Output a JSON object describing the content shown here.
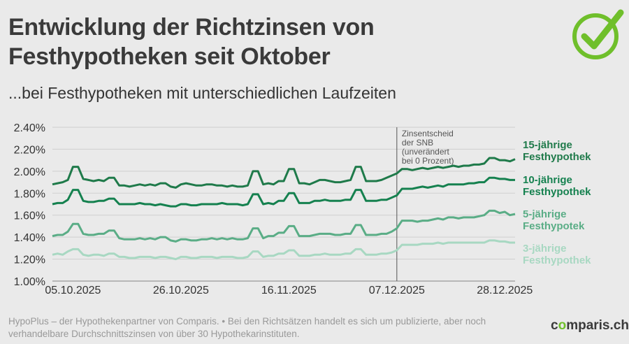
{
  "title": "Entwicklung der Richtzinsen von Festhypotheken seit Oktober",
  "subtitle": "...bei Festhypotheken mit unterschiedlichen Laufzeiten",
  "footer": "HypoPlus – der Hypothekenpartner von Comparis. • Bei den Richtsätzen handelt es sich um publizierte, aber noch verhandelbare Durchschnittszinsen von über 30 Hypothekarinstituten.",
  "brand": {
    "pre": "c",
    "o": "o",
    "post": "mparis.ch"
  },
  "colors": {
    "accent": "#6fbf2b",
    "s15": "#1f7a4a",
    "s10": "#15814f",
    "s5": "#5aad86",
    "s3": "#a8d8c2"
  },
  "chart_data": {
    "type": "line",
    "ylim": [
      1.0,
      2.4
    ],
    "ymin_label": 1.0,
    "yticks": [
      "2.40%",
      "2.20%",
      "2.00%",
      "1.80%",
      "1.60%",
      "1.40%",
      "1.20%",
      "1.00%"
    ],
    "ytick_values": [
      2.4,
      2.2,
      2.0,
      1.8,
      1.6,
      1.4,
      1.2,
      1.0
    ],
    "xlim": [
      0,
      90
    ],
    "xticks": [
      "05.10.2025",
      "26.10.2025",
      "16.11.2025",
      "07.12.2025",
      "28.12.2025"
    ],
    "xtick_values": [
      4,
      25,
      46,
      67,
      88
    ],
    "annotation": {
      "text": [
        "Zinsentscheid",
        "der SNB",
        "(unverändert",
        "bei 0 Prozent)"
      ],
      "x": 67
    },
    "series": [
      {
        "name": "15-jährige Festhypothek",
        "label": [
          "15-jährige",
          "Festhypothek"
        ],
        "color": "#1f7a4a",
        "x": [
          0,
          1,
          2,
          3,
          4,
          5,
          6,
          7,
          8,
          9,
          10,
          11,
          12,
          13,
          14,
          15,
          16,
          17,
          18,
          19,
          20,
          21,
          22,
          23,
          24,
          25,
          26,
          27,
          28,
          29,
          30,
          31,
          32,
          33,
          34,
          35,
          36,
          37,
          38,
          39,
          40,
          41,
          42,
          43,
          44,
          45,
          46,
          47,
          48,
          49,
          50,
          51,
          52,
          53,
          54,
          55,
          56,
          57,
          58,
          59,
          60,
          61,
          62,
          63,
          64,
          65,
          66,
          67,
          68,
          69,
          70,
          71,
          72,
          73,
          74,
          75,
          76,
          77,
          78,
          79,
          80,
          81,
          82,
          83,
          84,
          85,
          86,
          87,
          88,
          89,
          90
        ],
        "y": [
          1.88,
          1.89,
          1.9,
          1.92,
          2.04,
          2.04,
          1.93,
          1.92,
          1.91,
          1.92,
          1.91,
          1.94,
          1.94,
          1.87,
          1.87,
          1.86,
          1.87,
          1.88,
          1.87,
          1.88,
          1.87,
          1.89,
          1.89,
          1.86,
          1.85,
          1.88,
          1.89,
          1.88,
          1.87,
          1.87,
          1.88,
          1.88,
          1.87,
          1.87,
          1.86,
          1.87,
          1.86,
          1.86,
          1.87,
          2.0,
          2.0,
          1.88,
          1.89,
          1.88,
          1.91,
          1.91,
          2.02,
          2.02,
          1.89,
          1.89,
          1.88,
          1.9,
          1.92,
          1.92,
          1.91,
          1.9,
          1.9,
          1.91,
          1.92,
          2.04,
          2.04,
          1.91,
          1.91,
          1.91,
          1.92,
          1.94,
          1.96,
          1.98,
          2.02,
          2.02,
          2.01,
          2.02,
          2.03,
          2.02,
          2.03,
          2.04,
          2.03,
          2.04,
          2.05,
          2.04,
          2.05,
          2.05,
          2.06,
          2.06,
          2.07,
          2.12,
          2.12,
          2.1,
          2.1,
          2.09,
          2.11
        ]
      },
      {
        "name": "10-jährige Festhypothek",
        "label": [
          "10-jährige",
          "Festhypothek"
        ],
        "color": "#15814f",
        "x": [
          0,
          1,
          2,
          3,
          4,
          5,
          6,
          7,
          8,
          9,
          10,
          11,
          12,
          13,
          14,
          15,
          16,
          17,
          18,
          19,
          20,
          21,
          22,
          23,
          24,
          25,
          26,
          27,
          28,
          29,
          30,
          31,
          32,
          33,
          34,
          35,
          36,
          37,
          38,
          39,
          40,
          41,
          42,
          43,
          44,
          45,
          46,
          47,
          48,
          49,
          50,
          51,
          52,
          53,
          54,
          55,
          56,
          57,
          58,
          59,
          60,
          61,
          62,
          63,
          64,
          65,
          66,
          67,
          68,
          69,
          70,
          71,
          72,
          73,
          74,
          75,
          76,
          77,
          78,
          79,
          80,
          81,
          82,
          83,
          84,
          85,
          86,
          87,
          88,
          89,
          90
        ],
        "y": [
          1.7,
          1.71,
          1.71,
          1.74,
          1.83,
          1.83,
          1.73,
          1.72,
          1.72,
          1.73,
          1.73,
          1.75,
          1.75,
          1.7,
          1.7,
          1.7,
          1.7,
          1.71,
          1.7,
          1.7,
          1.69,
          1.7,
          1.69,
          1.68,
          1.68,
          1.7,
          1.7,
          1.69,
          1.69,
          1.7,
          1.7,
          1.7,
          1.7,
          1.71,
          1.7,
          1.7,
          1.7,
          1.69,
          1.7,
          1.79,
          1.79,
          1.7,
          1.71,
          1.7,
          1.73,
          1.73,
          1.8,
          1.8,
          1.71,
          1.71,
          1.71,
          1.73,
          1.73,
          1.74,
          1.73,
          1.73,
          1.73,
          1.74,
          1.74,
          1.83,
          1.83,
          1.73,
          1.73,
          1.73,
          1.74,
          1.74,
          1.76,
          1.78,
          1.84,
          1.84,
          1.84,
          1.85,
          1.86,
          1.85,
          1.86,
          1.87,
          1.86,
          1.88,
          1.88,
          1.88,
          1.88,
          1.89,
          1.89,
          1.9,
          1.9,
          1.94,
          1.94,
          1.93,
          1.93,
          1.92,
          1.92
        ]
      },
      {
        "name": "5-jährige Festhypotek",
        "label": [
          "5-jährige",
          "Festhypotek"
        ],
        "color": "#5aad86",
        "x": [
          0,
          1,
          2,
          3,
          4,
          5,
          6,
          7,
          8,
          9,
          10,
          11,
          12,
          13,
          14,
          15,
          16,
          17,
          18,
          19,
          20,
          21,
          22,
          23,
          24,
          25,
          26,
          27,
          28,
          29,
          30,
          31,
          32,
          33,
          34,
          35,
          36,
          37,
          38,
          39,
          40,
          41,
          42,
          43,
          44,
          45,
          46,
          47,
          48,
          49,
          50,
          51,
          52,
          53,
          54,
          55,
          56,
          57,
          58,
          59,
          60,
          61,
          62,
          63,
          64,
          65,
          66,
          67,
          68,
          69,
          70,
          71,
          72,
          73,
          74,
          75,
          76,
          77,
          78,
          79,
          80,
          81,
          82,
          83,
          84,
          85,
          86,
          87,
          88,
          89,
          90
        ],
        "y": [
          1.41,
          1.42,
          1.42,
          1.45,
          1.52,
          1.52,
          1.43,
          1.42,
          1.42,
          1.43,
          1.43,
          1.46,
          1.46,
          1.39,
          1.38,
          1.38,
          1.38,
          1.39,
          1.38,
          1.39,
          1.38,
          1.4,
          1.4,
          1.37,
          1.36,
          1.38,
          1.38,
          1.37,
          1.37,
          1.38,
          1.38,
          1.39,
          1.38,
          1.39,
          1.38,
          1.39,
          1.38,
          1.38,
          1.39,
          1.48,
          1.48,
          1.39,
          1.41,
          1.41,
          1.44,
          1.44,
          1.5,
          1.5,
          1.41,
          1.41,
          1.41,
          1.42,
          1.43,
          1.43,
          1.43,
          1.42,
          1.42,
          1.43,
          1.43,
          1.51,
          1.51,
          1.42,
          1.42,
          1.42,
          1.43,
          1.43,
          1.45,
          1.48,
          1.55,
          1.55,
          1.55,
          1.54,
          1.55,
          1.55,
          1.56,
          1.57,
          1.56,
          1.58,
          1.58,
          1.57,
          1.58,
          1.58,
          1.58,
          1.59,
          1.6,
          1.64,
          1.64,
          1.62,
          1.63,
          1.6,
          1.61
        ]
      },
      {
        "name": "3-jährige Festhypothek",
        "label": [
          "3-jährige",
          "Festhypothek"
        ],
        "color": "#a8d8c2",
        "x": [
          0,
          1,
          2,
          3,
          4,
          5,
          6,
          7,
          8,
          9,
          10,
          11,
          12,
          13,
          14,
          15,
          16,
          17,
          18,
          19,
          20,
          21,
          22,
          23,
          24,
          25,
          26,
          27,
          28,
          29,
          30,
          31,
          32,
          33,
          34,
          35,
          36,
          37,
          38,
          39,
          40,
          41,
          42,
          43,
          44,
          45,
          46,
          47,
          48,
          49,
          50,
          51,
          52,
          53,
          54,
          55,
          56,
          57,
          58,
          59,
          60,
          61,
          62,
          63,
          64,
          65,
          66,
          67,
          68,
          69,
          70,
          71,
          72,
          73,
          74,
          75,
          76,
          77,
          78,
          79,
          80,
          81,
          82,
          83,
          84,
          85,
          86,
          87,
          88,
          89,
          90
        ],
        "y": [
          1.24,
          1.25,
          1.24,
          1.27,
          1.29,
          1.29,
          1.24,
          1.23,
          1.24,
          1.24,
          1.23,
          1.25,
          1.25,
          1.22,
          1.22,
          1.21,
          1.21,
          1.22,
          1.22,
          1.22,
          1.21,
          1.22,
          1.22,
          1.21,
          1.2,
          1.22,
          1.22,
          1.21,
          1.21,
          1.22,
          1.22,
          1.22,
          1.21,
          1.22,
          1.22,
          1.22,
          1.21,
          1.21,
          1.22,
          1.27,
          1.27,
          1.22,
          1.23,
          1.23,
          1.25,
          1.25,
          1.28,
          1.28,
          1.23,
          1.23,
          1.23,
          1.24,
          1.24,
          1.25,
          1.24,
          1.24,
          1.24,
          1.25,
          1.25,
          1.29,
          1.29,
          1.24,
          1.24,
          1.24,
          1.25,
          1.25,
          1.26,
          1.28,
          1.33,
          1.33,
          1.33,
          1.33,
          1.34,
          1.34,
          1.34,
          1.35,
          1.34,
          1.35,
          1.35,
          1.35,
          1.35,
          1.35,
          1.35,
          1.35,
          1.35,
          1.37,
          1.37,
          1.36,
          1.36,
          1.35,
          1.35
        ]
      }
    ]
  }
}
